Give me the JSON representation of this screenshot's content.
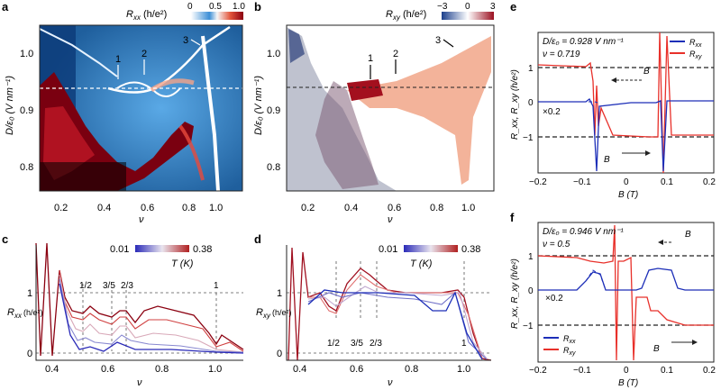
{
  "colors": {
    "red": "#e8302a",
    "blue": "#1d2fb8",
    "redDark": "#8b0010",
    "blueDark": "#1b3f8c",
    "salmon": "#f2a07a"
  },
  "panels": {
    "a": {
      "label": "a",
      "cbar_title": "R",
      "cbar_sub": "xx",
      "cbar_unit": "(h/e²)",
      "cbar_ticks": [
        "0",
        "0.5",
        "1.0"
      ],
      "ylabel": "D/ε₀ (V nm⁻¹)",
      "xlabel": "ν",
      "yticks": [
        "1.0",
        "0.9",
        "0.8"
      ],
      "xticks": [
        "0.2",
        "0.4",
        "0.6",
        "0.8",
        "1.0"
      ],
      "annotations": [
        "1",
        "2",
        "3"
      ]
    },
    "b": {
      "label": "b",
      "cbar_title": "R",
      "cbar_sub": "xy",
      "cbar_unit": "(h/e²)",
      "cbar_ticks": [
        "−3",
        "0",
        "3"
      ],
      "ylabel": "D/ε₀ (V nm⁻¹)",
      "xlabel": "ν",
      "yticks": [
        "1.0",
        "0.9",
        "0.8"
      ],
      "xticks": [
        "0.2",
        "0.4",
        "0.6",
        "0.8",
        "1.0"
      ],
      "annotations": [
        "1",
        "2",
        "3"
      ]
    },
    "c": {
      "label": "c",
      "ylabel": "R",
      "ylabel_sub": "xx",
      "ylabel_unit": "(h/e²)",
      "xlabel": "ν",
      "yticks": [
        "1",
        "0"
      ],
      "xticks": [
        "0.4",
        "0.6",
        "0.8",
        "1.0"
      ],
      "fractions": [
        "1/2",
        "3/5",
        "2/3",
        "1"
      ],
      "legend_min": "0.01",
      "legend_max": "0.38",
      "legend_title": "T (K)"
    },
    "d": {
      "label": "d",
      "ylabel": "R",
      "ylabel_sub": "xy",
      "ylabel_unit": "(h/e²)",
      "xlabel": "ν",
      "yticks": [
        "1",
        "0"
      ],
      "xticks": [
        "0.4",
        "0.6",
        "0.8",
        "1.0"
      ],
      "fractions": [
        "1/2",
        "3/5",
        "2/3",
        "1"
      ],
      "legend_min": "0.01",
      "legend_max": "0.38",
      "legend_title": "T (K)"
    },
    "e": {
      "label": "e",
      "title1": "D/ε₀ = 0.928 V nm⁻¹",
      "title2": "ν = 0.719",
      "legend": [
        "R",
        "R"
      ],
      "legend_sub": [
        "xx",
        "xy"
      ],
      "ylabel": "R_xx, R_xy (h/e²)",
      "xlabel": "B (T)",
      "yticks": [
        "1",
        "0",
        "−1"
      ],
      "xticks": [
        "−0.2",
        "−0.1",
        "0",
        "0.1",
        "0.2"
      ],
      "scale_note": "×0.2",
      "field_label": "B"
    },
    "f": {
      "label": "f",
      "title1": "D/ε₀ = 0.946 V nm⁻¹",
      "title2": "ν = 0.5",
      "legend": [
        "R",
        "R"
      ],
      "legend_sub": [
        "xx",
        "xy"
      ],
      "ylabel": "R_xx, R_xy (h/e²)",
      "xlabel": "B (T)",
      "yticks": [
        "1",
        "0",
        "−1"
      ],
      "xticks": [
        "−0.2",
        "−0.1",
        "0",
        "0.1",
        "0.2"
      ],
      "scale_note": "×0.2",
      "field_label": "B"
    }
  }
}
